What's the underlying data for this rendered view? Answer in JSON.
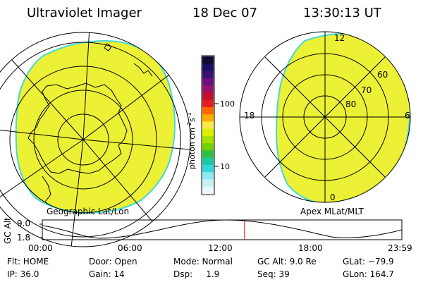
{
  "header": {
    "title": "Ultraviolet Imager",
    "date": "18 Dec 07",
    "time": "13:30:13 UT"
  },
  "left_panel": {
    "caption": "Geographic Lat/Lon"
  },
  "right_panel": {
    "caption": "Apex MLat/MLT",
    "mlt_labels": [
      "12",
      "18",
      "6",
      "0"
    ],
    "mlat_labels": [
      "60",
      "70",
      "80"
    ]
  },
  "colorbar": {
    "unit_label": "photon cm",
    "unit_exp1": "-2",
    "unit_s": "s",
    "unit_exp2": "-1",
    "tick_100": "100",
    "tick_10": "10",
    "colors_top_to_bottom": [
      "#0d0a2e",
      "#1a1060",
      "#3a1070",
      "#6a1078",
      "#9a1070",
      "#c01030",
      "#e02020",
      "#ff6600",
      "#ffaa00",
      "#ffe84a",
      "#d8f000",
      "#a8e000",
      "#70d000",
      "#30c040",
      "#20c8a0",
      "#30d8d8",
      "#90e8f0",
      "#c8f0f8",
      "#e8f8fc"
    ],
    "fill_color": "#ecf135",
    "edge_color": "#44d8d8"
  },
  "orbit": {
    "axis_label": "GC Alt",
    "y_top": "9.0",
    "y_bottom": "1.8",
    "x_ticks": [
      "00:00",
      "06:00",
      "12:00",
      "18:00",
      "23:59"
    ],
    "current_time_hours": 13.5
  },
  "footer": {
    "flt": "Flt: HOME",
    "ip": "IP: 36.0",
    "door": "Door: Open",
    "gain": "Gain: 14",
    "mode": "Mode: Normal",
    "dsp": "Dsp:     1.9",
    "gcalt": "GC Alt: 9.0 Re",
    "seq": "Seq: 39",
    "glat": "GLat: −79.9",
    "glon": "GLon: 164.7"
  }
}
